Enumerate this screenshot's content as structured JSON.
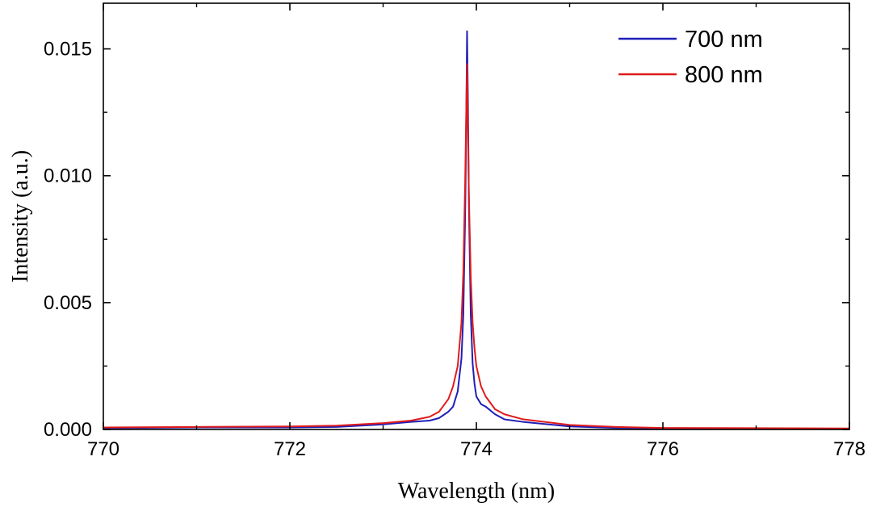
{
  "chart_data": {
    "type": "line",
    "title": "",
    "xlabel": "Wavelength (nm)",
    "ylabel": "Intensity (a.u.)",
    "xlim": [
      770,
      778
    ],
    "ylim": [
      0,
      0.0168
    ],
    "xticks": [
      770,
      772,
      774,
      776,
      778
    ],
    "xtick_labels": [
      "770",
      "772",
      "774",
      "776",
      "778"
    ],
    "yticks": [
      0.0,
      0.005,
      0.01,
      0.015
    ],
    "ytick_labels": [
      "0.000",
      "0.005",
      "0.010",
      "0.015"
    ],
    "grid": false,
    "legend_position": "top-right",
    "series": [
      {
        "name": "700 nm",
        "color": "#1f1fb8",
        "x": [
          770.0,
          771.0,
          772.0,
          772.5,
          773.0,
          773.3,
          773.5,
          773.6,
          773.7,
          773.75,
          773.8,
          773.84,
          773.86,
          773.88,
          773.89,
          773.9,
          773.91,
          773.92,
          773.94,
          773.96,
          773.98,
          774.0,
          774.05,
          774.1,
          774.2,
          774.3,
          774.5,
          775.0,
          775.5,
          776.0,
          777.0,
          778.0
        ],
        "y": [
          5e-05,
          8e-05,
          8e-05,
          0.0001,
          0.0002,
          0.0003,
          0.00035,
          0.00045,
          0.0007,
          0.0009,
          0.0015,
          0.0028,
          0.0045,
          0.0085,
          0.0115,
          0.0157,
          0.0128,
          0.0088,
          0.0045,
          0.0026,
          0.0018,
          0.0013,
          0.001,
          0.0009,
          0.0006,
          0.0004,
          0.0003,
          0.00012,
          6e-05,
          4e-05,
          3e-05,
          2e-05
        ]
      },
      {
        "name": "800 nm",
        "color": "#e01b1b",
        "x": [
          770.0,
          771.0,
          772.0,
          772.5,
          773.0,
          773.3,
          773.5,
          773.6,
          773.7,
          773.75,
          773.8,
          773.84,
          773.86,
          773.88,
          773.89,
          773.9,
          773.91,
          773.92,
          773.94,
          773.96,
          773.98,
          774.0,
          774.05,
          774.1,
          774.2,
          774.3,
          774.5,
          775.0,
          775.5,
          776.0,
          777.0,
          778.0
        ],
        "y": [
          8e-05,
          0.0001,
          0.00012,
          0.00015,
          0.00025,
          0.00035,
          0.0005,
          0.0007,
          0.0012,
          0.0017,
          0.0025,
          0.0042,
          0.0062,
          0.0098,
          0.0122,
          0.0144,
          0.0118,
          0.0092,
          0.006,
          0.0042,
          0.0032,
          0.0025,
          0.0017,
          0.0013,
          0.0008,
          0.0006,
          0.0004,
          0.00018,
          0.0001,
          6e-05,
          5e-05,
          4e-05
        ]
      }
    ]
  }
}
